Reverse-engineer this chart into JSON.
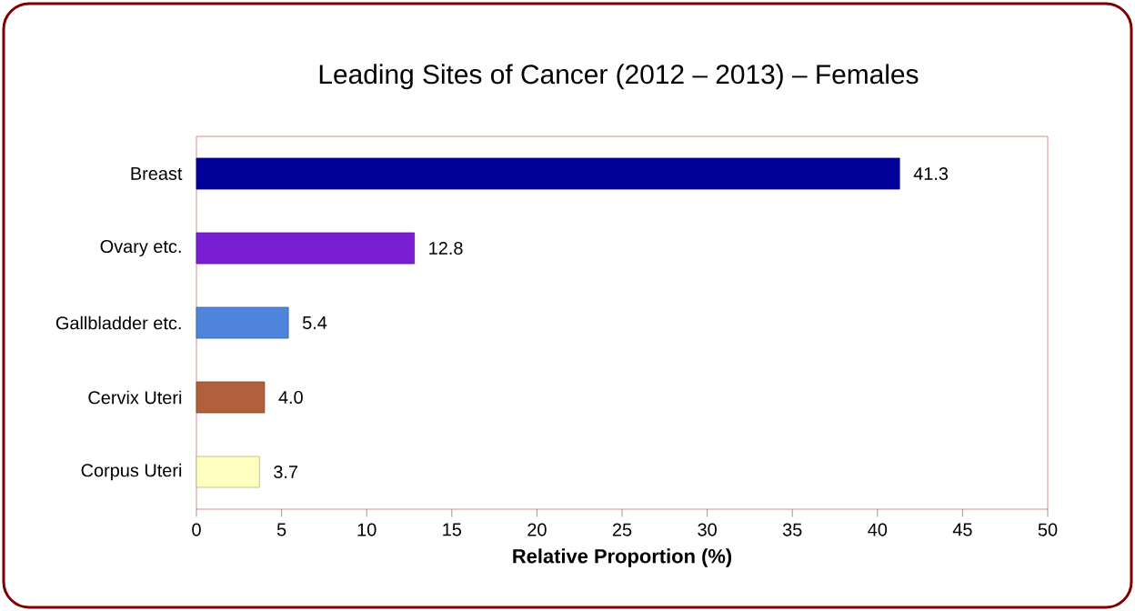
{
  "chart_data": {
    "type": "bar",
    "orientation": "horizontal",
    "title": "Leading Sites of Cancer (2012 – 2013) – Females",
    "xlabel": "Relative Proportion (%)",
    "categories": [
      "Breast",
      "Ovary etc.",
      "Gallbladder etc.",
      "Cervix Uteri",
      "Corpus Uteri"
    ],
    "values": [
      41.3,
      12.8,
      5.4,
      4.0,
      3.7
    ],
    "value_labels": [
      "41.3",
      "12.8",
      "5.4",
      "4.0",
      "3.7"
    ],
    "colors": [
      "#000099",
      "#7a1ed4",
      "#4f86dc",
      "#b0603a",
      "#ffffc0"
    ],
    "xlim": [
      0,
      50
    ],
    "xticks": [
      0,
      5,
      10,
      15,
      20,
      25,
      30,
      35,
      40,
      45,
      50
    ],
    "grid": false
  }
}
